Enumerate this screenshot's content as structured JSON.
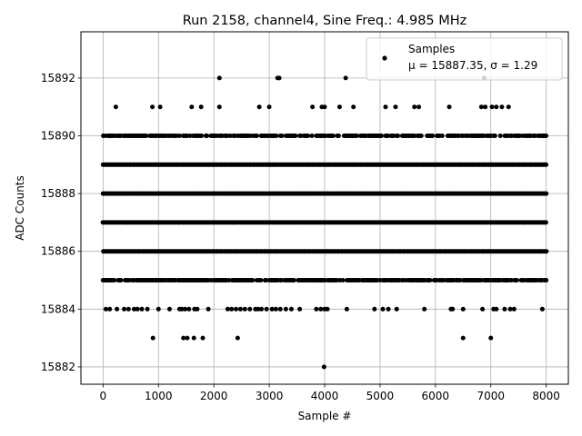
{
  "chart_data": {
    "type": "scatter",
    "title": "Run 2158, channel4, Sine Freq.: 4.985 MHz",
    "xlabel": "Sample #",
    "ylabel": "ADC Counts",
    "xlim": [
      -400,
      8400
    ],
    "ylim": [
      15881.4,
      15893.6
    ],
    "xticks": [
      0,
      1000,
      2000,
      3000,
      4000,
      5000,
      6000,
      7000,
      8000
    ],
    "yticks": [
      15882,
      15884,
      15886,
      15888,
      15890,
      15892
    ],
    "grid": true,
    "legend": {
      "placement": "top-right",
      "entries": [
        "Samples",
        "μ = 15887.35, σ = 1.29"
      ]
    },
    "marker_color": "#000000",
    "series": [
      {
        "name": "Samples",
        "levels": [
          {
            "y": 15882,
            "x": [
              3990
            ]
          },
          {
            "y": 15883,
            "x": [
              900,
              1450,
              1520,
              1640,
              1800,
              2430,
              6500,
              7000
            ]
          },
          {
            "y": 15884,
            "x": [
              50,
              120,
              250,
              380,
              460,
              560,
              620,
              700,
              800,
              1000,
              1200,
              1380,
              1420,
              1480,
              1550,
              1650,
              1700,
              1900,
              2250,
              2320,
              2400,
              2480,
              2560,
              2650,
              2750,
              2800,
              2860,
              2950,
              3050,
              3120,
              3200,
              3300,
              3400,
              3550,
              3850,
              3930,
              4000,
              4050,
              4400,
              4900,
              5050,
              5150,
              5300,
              5800,
              6280,
              6310,
              6500,
              6850,
              7050,
              7100,
              7250,
              7350,
              7420,
              7930
            ]
          },
          {
            "y": 15885,
            "x_range": [
              0,
              8000
            ],
            "density": 0.82
          },
          {
            "y": 15886,
            "x_range": [
              0,
              8000
            ],
            "density": 1.0
          },
          {
            "y": 15887,
            "x_range": [
              0,
              8000
            ],
            "density": 1.0
          },
          {
            "y": 15888,
            "x_range": [
              0,
              8000
            ],
            "density": 1.0
          },
          {
            "y": 15889,
            "x_range": [
              0,
              8000
            ],
            "density": 1.0
          },
          {
            "y": 15890,
            "x_range": [
              0,
              8000
            ],
            "density": 0.78
          },
          {
            "y": 15891,
            "x": [
              230,
              890,
              1030,
              1600,
              1770,
              2100,
              2820,
              3000,
              3780,
              3950,
              4000,
              4270,
              4520,
              5100,
              5280,
              5620,
              5700,
              6250,
              6830,
              6900,
              7020,
              7100,
              7200,
              7320
            ]
          },
          {
            "y": 15892,
            "x": [
              2100,
              3150,
              3180,
              4380,
              6880
            ]
          }
        ]
      }
    ]
  }
}
